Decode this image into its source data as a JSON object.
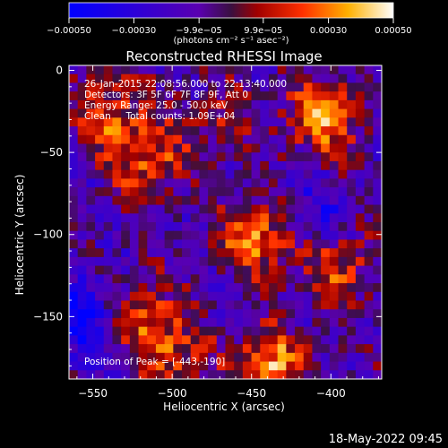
{
  "chart_data": {
    "type": "heatmap",
    "title": "Reconstructed RHESSI Image",
    "xlabel": "Heliocentric X (arcsec)",
    "ylabel": "Heliocentric Y (arcsec)",
    "xlim": [
      -565,
      -368
    ],
    "ylim": [
      -188,
      3
    ],
    "xticks": [
      -550,
      -500,
      -450,
      -400
    ],
    "yticks": [
      0,
      -50,
      -100,
      -150
    ],
    "xtick_labels": [
      "−550",
      "−500",
      "−450",
      "−400"
    ],
    "ytick_labels": [
      "0",
      "−50",
      "−100",
      "−150"
    ],
    "grid_size": [
      36,
      36
    ],
    "colorbar": {
      "min": -0.0005,
      "max": 0.0005,
      "ticks": [
        -0.0005,
        -0.0003,
        -9.9e-05,
        9.9e-05,
        0.0003,
        0.0005
      ],
      "tick_labels": [
        "−0.00050",
        "−0.00030",
        "−9.9e−05",
        "9.9e−05",
        "0.00030",
        "0.00050"
      ],
      "unit_label": "(photons cm⁻² s⁻¹ asec⁻²)"
    },
    "annotations": [
      "26-Jan-2015 22:08:56.000 to 22:13:40.000",
      "Detectors: 3F 5F 6F 7F 8F 9F, Att 0",
      "Energy Range: 25.0 - 50.0 keV",
      "Clean     Total counts: 1.09E+04"
    ],
    "peak_label": "Position of Peak = [-443,-190]",
    "peak": [
      -443,
      -190
    ],
    "hot_features": [
      {
        "x": -447,
        "y": -102,
        "value": 0.00045
      },
      {
        "x": -405,
        "y": -28,
        "value": 0.0005
      },
      {
        "x": -515,
        "y": -55,
        "value": 0.0004
      },
      {
        "x": -540,
        "y": -25,
        "value": 0.00035
      },
      {
        "x": -520,
        "y": -150,
        "value": 0.00035
      },
      {
        "x": -500,
        "y": -175,
        "value": 0.00032
      },
      {
        "x": -440,
        "y": -180,
        "value": 0.0005
      },
      {
        "x": -395,
        "y": -120,
        "value": 0.00032
      },
      {
        "x": -470,
        "y": -30,
        "value": 0.0002
      }
    ],
    "cold_features": [
      {
        "x": -555,
        "y": -150,
        "value": -0.00038
      },
      {
        "x": -410,
        "y": -85,
        "value": -0.0002
      }
    ]
  },
  "footer": {
    "date": "18-May-2022 09:45"
  }
}
